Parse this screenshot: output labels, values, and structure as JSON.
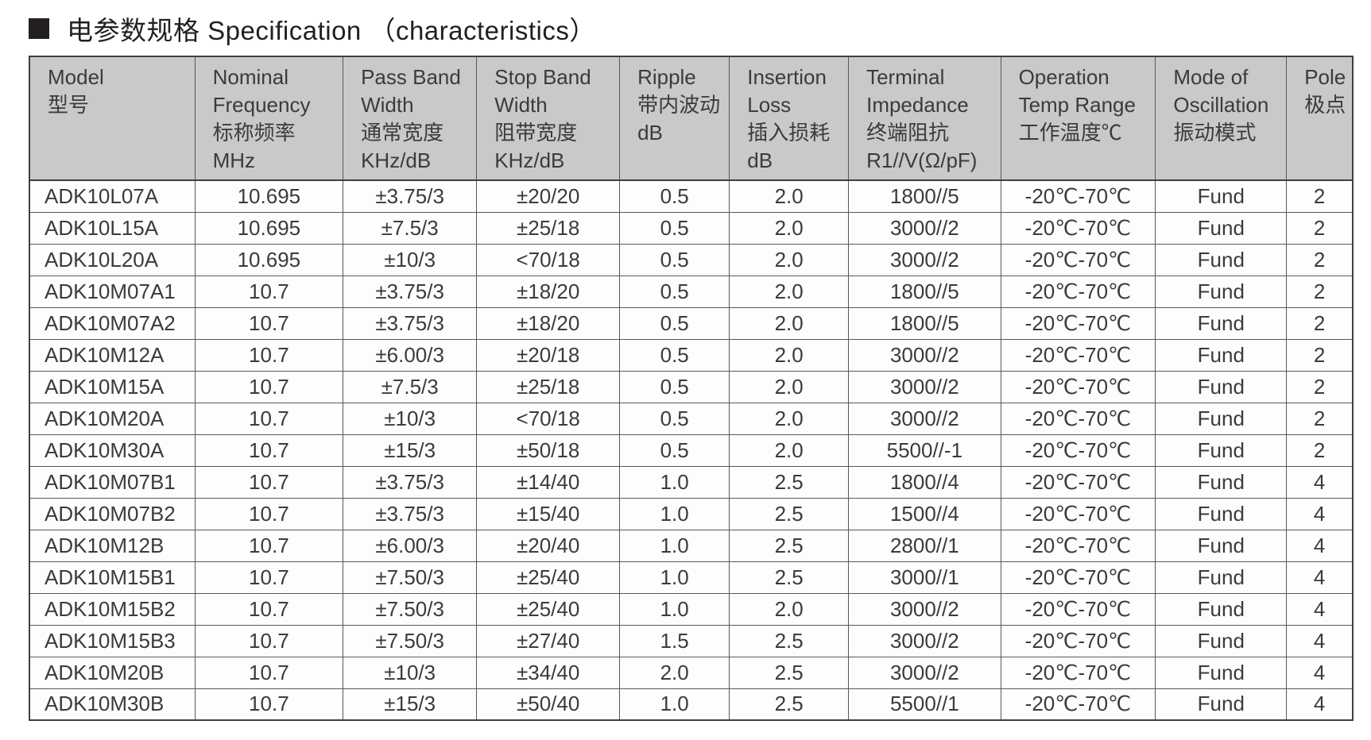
{
  "title": "电参数规格 Specification （characteristics）",
  "colors": {
    "header_bg": "#c9c9c9",
    "border": "#58585a",
    "outer_border": "#3f3f41",
    "text": "#3b3b3d",
    "title": "#231f20"
  },
  "table": {
    "columns": [
      {
        "id": "model",
        "lines": [
          "Model",
          "型号"
        ],
        "width": "12.5%",
        "align": "left"
      },
      {
        "id": "nominal-frequency",
        "lines": [
          "Nominal",
          "Frequency",
          "标称频率",
          "MHz"
        ],
        "width": "11.2%",
        "align": "center"
      },
      {
        "id": "pass-band-width",
        "lines": [
          "Pass Band",
          "Width",
          "通常宽度",
          "KHz/dB"
        ],
        "width": "10.1%",
        "align": "center"
      },
      {
        "id": "stop-band-width",
        "lines": [
          "Stop Band",
          "Width",
          "阻带宽度",
          "KHz/dB"
        ],
        "width": "10.8%",
        "align": "center"
      },
      {
        "id": "ripple",
        "lines": [
          "Ripple",
          "带内波动",
          "dB"
        ],
        "width": "8.3%",
        "align": "center"
      },
      {
        "id": "insertion-loss",
        "lines": [
          "Insertion",
          "Loss",
          "插入损耗",
          "dB"
        ],
        "width": "9.0%",
        "align": "center"
      },
      {
        "id": "terminal-impedance",
        "lines": [
          "Terminal",
          "Impedance",
          "终端阻抗",
          "R1//V(Ω/pF)"
        ],
        "width": "11.5%",
        "align": "center"
      },
      {
        "id": "operation-temp",
        "lines": [
          "Operation",
          "Temp Range",
          "工作温度℃"
        ],
        "width": "11.7%",
        "align": "center"
      },
      {
        "id": "mode-of-oscillation",
        "lines": [
          "Mode of",
          "Oscillation",
          "振动模式"
        ],
        "width": "9.9%",
        "align": "center"
      },
      {
        "id": "pole",
        "lines": [
          "Pole",
          "极点"
        ],
        "width": "5.0%",
        "align": "center"
      }
    ],
    "rows": [
      [
        "ADK10L07A",
        "10.695",
        "±3.75/3",
        "±20/20",
        "0.5",
        "2.0",
        "1800//5",
        "-20℃-70℃",
        "Fund",
        "2"
      ],
      [
        "ADK10L15A",
        "10.695",
        "±7.5/3",
        "±25/18",
        "0.5",
        "2.0",
        "3000//2",
        "-20℃-70℃",
        "Fund",
        "2"
      ],
      [
        "ADK10L20A",
        "10.695",
        "±10/3",
        "<70/18",
        "0.5",
        "2.0",
        "3000//2",
        "-20℃-70℃",
        "Fund",
        "2"
      ],
      [
        "ADK10M07A1",
        "10.7",
        "±3.75/3",
        "±18/20",
        "0.5",
        "2.0",
        "1800//5",
        "-20℃-70℃",
        "Fund",
        "2"
      ],
      [
        "ADK10M07A2",
        "10.7",
        "±3.75/3",
        "±18/20",
        "0.5",
        "2.0",
        "1800//5",
        "-20℃-70℃",
        "Fund",
        "2"
      ],
      [
        "ADK10M12A",
        "10.7",
        "±6.00/3",
        "±20/18",
        "0.5",
        "2.0",
        "3000//2",
        "-20℃-70℃",
        "Fund",
        "2"
      ],
      [
        "ADK10M15A",
        "10.7",
        "±7.5/3",
        "±25/18",
        "0.5",
        "2.0",
        "3000//2",
        "-20℃-70℃",
        "Fund",
        "2"
      ],
      [
        "ADK10M20A",
        "10.7",
        "±10/3",
        "<70/18",
        "0.5",
        "2.0",
        "3000//2",
        "-20℃-70℃",
        "Fund",
        "2"
      ],
      [
        "ADK10M30A",
        "10.7",
        "±15/3",
        "±50/18",
        "0.5",
        "2.0",
        "5500//-1",
        "-20℃-70℃",
        "Fund",
        "2"
      ],
      [
        "ADK10M07B1",
        "10.7",
        "±3.75/3",
        "±14/40",
        "1.0",
        "2.5",
        "1800//4",
        "-20℃-70℃",
        "Fund",
        "4"
      ],
      [
        "ADK10M07B2",
        "10.7",
        "±3.75/3",
        "±15/40",
        "1.0",
        "2.5",
        "1500//4",
        "-20℃-70℃",
        "Fund",
        "4"
      ],
      [
        "ADK10M12B",
        "10.7",
        "±6.00/3",
        "±20/40",
        "1.0",
        "2.5",
        "2800//1",
        "-20℃-70℃",
        "Fund",
        "4"
      ],
      [
        "ADK10M15B1",
        "10.7",
        "±7.50/3",
        "±25/40",
        "1.0",
        "2.5",
        "3000//1",
        "-20℃-70℃",
        "Fund",
        "4"
      ],
      [
        "ADK10M15B2",
        "10.7",
        "±7.50/3",
        "±25/40",
        "1.0",
        "2.0",
        "3000//2",
        "-20℃-70℃",
        "Fund",
        "4"
      ],
      [
        "ADK10M15B3",
        "10.7",
        "±7.50/3",
        "±27/40",
        "1.5",
        "2.5",
        "3000//2",
        "-20℃-70℃",
        "Fund",
        "4"
      ],
      [
        "ADK10M20B",
        "10.7",
        "±10/3",
        "±34/40",
        "2.0",
        "2.5",
        "3000//2",
        "-20℃-70℃",
        "Fund",
        "4"
      ],
      [
        "ADK10M30B",
        "10.7",
        "±15/3",
        "±50/40",
        "1.0",
        "2.5",
        "5500//1",
        "-20℃-70℃",
        "Fund",
        "4"
      ]
    ]
  }
}
